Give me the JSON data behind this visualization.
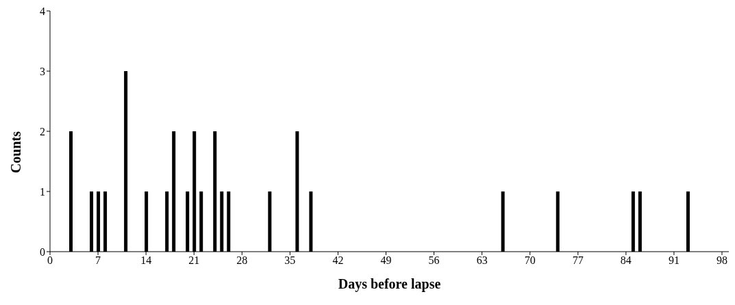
{
  "chart_data": {
    "type": "bar",
    "xlabel": "Days before lapse",
    "ylabel": "Counts",
    "x": [
      3,
      6,
      7,
      8,
      11,
      14,
      17,
      18,
      20,
      21,
      22,
      24,
      25,
      26,
      32,
      36,
      38,
      66,
      74,
      85,
      86,
      93
    ],
    "values": [
      2,
      1,
      1,
      1,
      3,
      1,
      1,
      2,
      1,
      2,
      1,
      2,
      1,
      1,
      1,
      2,
      1,
      1,
      1,
      1,
      1,
      1
    ],
    "color": "#000000",
    "xlim": [
      0,
      99
    ],
    "xticks": [
      0,
      7,
      14,
      21,
      28,
      35,
      42,
      49,
      56,
      63,
      70,
      77,
      84,
      91,
      98
    ],
    "ylim": [
      0,
      4
    ],
    "yticks": [
      0,
      1,
      2,
      3,
      4
    ],
    "grid": false
  }
}
